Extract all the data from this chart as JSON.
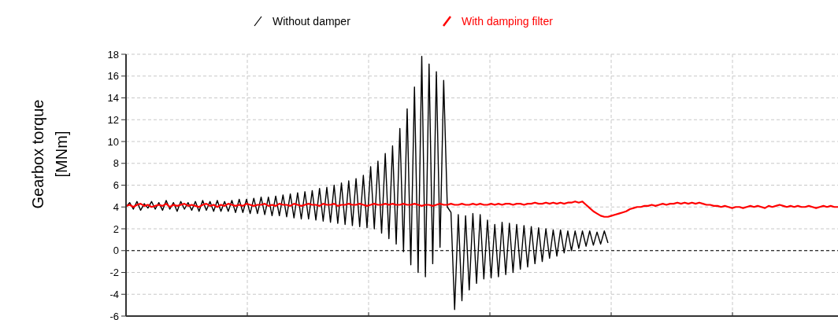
{
  "chart_data": {
    "type": "line",
    "ylabel": "Gearbox torque [MNm]",
    "legend": "top",
    "grid": true,
    "line_style": "solid",
    "marker": "none",
    "tick_labels": "y",
    "categories": [
      null,
      null,
      null,
      null,
      null,
      null,
      null,
      null,
      null,
      null,
      null,
      null,
      null,
      null,
      null,
      null,
      null,
      null,
      null,
      null,
      null,
      null,
      null,
      null,
      null,
      null,
      null,
      null,
      null,
      null,
      null,
      null,
      null,
      null,
      null,
      null,
      null,
      null,
      null,
      null,
      null,
      null,
      null,
      null,
      null,
      null,
      null,
      null,
      null,
      null,
      null,
      null,
      null,
      null,
      null,
      null,
      null,
      null,
      null,
      null,
      null,
      null,
      null,
      null,
      null,
      null,
      null,
      null,
      null,
      null,
      null,
      null,
      null,
      null,
      null,
      null,
      null,
      null,
      null,
      null,
      null,
      null,
      null,
      null,
      null,
      null,
      null,
      null,
      null,
      null,
      null,
      null,
      null,
      null,
      null,
      null,
      null,
      null,
      null,
      null,
      null,
      null,
      null,
      null,
      null,
      null,
      null,
      null,
      null,
      null,
      null,
      null,
      null,
      null,
      null,
      null,
      null,
      null,
      null,
      null,
      null,
      null,
      null,
      null,
      null,
      null,
      null,
      null,
      null,
      null,
      null,
      null,
      null,
      null,
      null,
      null,
      null,
      null,
      null,
      null,
      null,
      null,
      null,
      null,
      null,
      null,
      null,
      null,
      null,
      null,
      null,
      null,
      null,
      null,
      null,
      null,
      null,
      null,
      null,
      null,
      null,
      null,
      null,
      null,
      null,
      null,
      null,
      null,
      null,
      null,
      null,
      null,
      null,
      null,
      null,
      null,
      null,
      null,
      null,
      null,
      null,
      null,
      null,
      null,
      null,
      null,
      null,
      null,
      null,
      null,
      null,
      null,
      null,
      null,
      null,
      null
    ],
    "ylim": [
      -6,
      18
    ],
    "yticks": [
      -6,
      -4,
      -2,
      0,
      2,
      4,
      6,
      8,
      10,
      12,
      14,
      16,
      18
    ],
    "ref_lines": [
      {
        "axis": "y",
        "value": 0,
        "label": null,
        "color": "#000000",
        "line_style": "dashed"
      }
    ],
    "series": [
      {
        "name": "Without damper",
        "color": "#000000",
        "values": [
          4.0,
          4.4,
          3.8,
          4.5,
          3.7,
          4.3,
          3.9,
          4.5,
          3.8,
          4.4,
          3.7,
          4.6,
          3.8,
          4.4,
          3.6,
          4.5,
          3.8,
          4.4,
          3.7,
          4.5,
          3.6,
          4.6,
          3.7,
          4.5,
          3.6,
          4.6,
          3.6,
          4.5,
          3.6,
          4.6,
          3.5,
          4.7,
          3.5,
          4.7,
          3.4,
          4.8,
          3.4,
          4.9,
          3.3,
          4.9,
          3.2,
          5.0,
          3.2,
          5.1,
          3.1,
          5.2,
          3.0,
          5.3,
          2.9,
          5.4,
          2.9,
          5.5,
          2.8,
          5.7,
          2.7,
          5.8,
          2.6,
          6.0,
          2.5,
          6.2,
          2.4,
          6.4,
          2.3,
          6.6,
          2.2,
          6.9,
          2.1,
          7.7,
          2.0,
          8.2,
          1.6,
          8.9,
          1.1,
          9.6,
          0.6,
          11.2,
          -0.1,
          13.0,
          -1.3,
          15.0,
          -2.0,
          17.8,
          -2.4,
          17.1,
          -1.2,
          16.4,
          0.3,
          15.6,
          4.0,
          3.5,
          -5.4,
          3.3,
          -4.6,
          3.2,
          -3.6,
          3.4,
          -3.0,
          3.3,
          -2.6,
          2.8,
          -2.5,
          2.4,
          -2.4,
          2.6,
          -2.2,
          2.5,
          -2.0,
          2.4,
          -1.7,
          2.3,
          -1.5,
          2.2,
          -1.2,
          2.1,
          -1.0,
          2.0,
          -0.7,
          1.9,
          -0.5,
          1.9,
          -0.2,
          1.8,
          0.0,
          1.8,
          0.2,
          1.8,
          0.4,
          1.8,
          0.5,
          1.7,
          0.6,
          1.8,
          0.7,
          null,
          null,
          null,
          null,
          null,
          null,
          null,
          null,
          null,
          null,
          null,
          null,
          null,
          null,
          null,
          null,
          null,
          null,
          null,
          null,
          null,
          null,
          null,
          null,
          null,
          null,
          null,
          null,
          null,
          null,
          null,
          null,
          null,
          null,
          null,
          null,
          null,
          null,
          null,
          null,
          null,
          null,
          null,
          null,
          null,
          null,
          null,
          null,
          null,
          null,
          null,
          null,
          null,
          null,
          null,
          null,
          null,
          null,
          null,
          null,
          null,
          null,
          null
        ]
      },
      {
        "name": "With damping filter",
        "color": "#ff0000",
        "values": [
          4.1,
          4.2,
          4.0,
          4.2,
          4.3,
          4.1,
          4.2,
          4.0,
          4.1,
          4.2,
          4.1,
          4.3,
          4.0,
          4.2,
          4.1,
          4.2,
          4.3,
          4.1,
          4.2,
          4.1,
          4.0,
          4.2,
          4.3,
          4.1,
          4.2,
          4.0,
          4.2,
          4.1,
          4.3,
          4.2,
          4.1,
          4.2,
          4.1,
          4.3,
          4.2,
          4.1,
          4.2,
          4.2,
          4.3,
          4.1,
          4.2,
          4.1,
          4.3,
          4.2,
          4.2,
          4.1,
          4.3,
          4.2,
          4.1,
          4.2,
          4.3,
          4.2,
          4.2,
          4.1,
          4.3,
          4.2,
          4.2,
          4.3,
          4.1,
          4.2,
          4.2,
          4.3,
          4.2,
          4.2,
          4.3,
          4.2,
          4.1,
          4.2,
          4.3,
          4.2,
          4.2,
          4.3,
          4.2,
          4.3,
          4.2,
          4.2,
          4.3,
          4.2,
          4.2,
          4.3,
          4.2,
          4.1,
          4.2,
          4.2,
          4.1,
          4.2,
          4.3,
          4.2,
          4.2,
          4.3,
          4.2,
          4.2,
          4.3,
          4.2,
          4.2,
          4.3,
          4.2,
          4.3,
          4.2,
          4.2,
          4.3,
          4.2,
          4.3,
          4.2,
          4.3,
          4.3,
          4.2,
          4.3,
          4.3,
          4.2,
          4.3,
          4.3,
          4.4,
          4.3,
          4.3,
          4.4,
          4.3,
          4.4,
          4.3,
          4.4,
          4.3,
          4.4,
          4.4,
          4.5,
          4.4,
          4.5,
          4.2,
          3.9,
          3.6,
          3.4,
          3.2,
          3.1,
          3.1,
          3.2,
          3.3,
          3.4,
          3.5,
          3.6,
          3.8,
          3.9,
          4.0,
          4.0,
          4.1,
          4.1,
          4.2,
          4.1,
          4.2,
          4.3,
          4.2,
          4.3,
          4.3,
          4.4,
          4.3,
          4.4,
          4.3,
          4.4,
          4.3,
          4.4,
          4.3,
          4.2,
          4.2,
          4.1,
          4.1,
          4.0,
          4.1,
          4.0,
          3.9,
          4.0,
          4.0,
          3.9,
          4.0,
          4.1,
          4.0,
          4.1,
          4.0,
          3.9,
          4.1,
          4.0,
          4.1,
          4.2,
          4.1,
          4.0,
          4.1,
          4.0,
          4.1,
          4.0,
          4.0,
          4.1,
          4.0,
          3.9,
          4.0,
          4.1,
          4.0,
          4.1,
          4.0,
          4.0
        ]
      }
    ]
  }
}
